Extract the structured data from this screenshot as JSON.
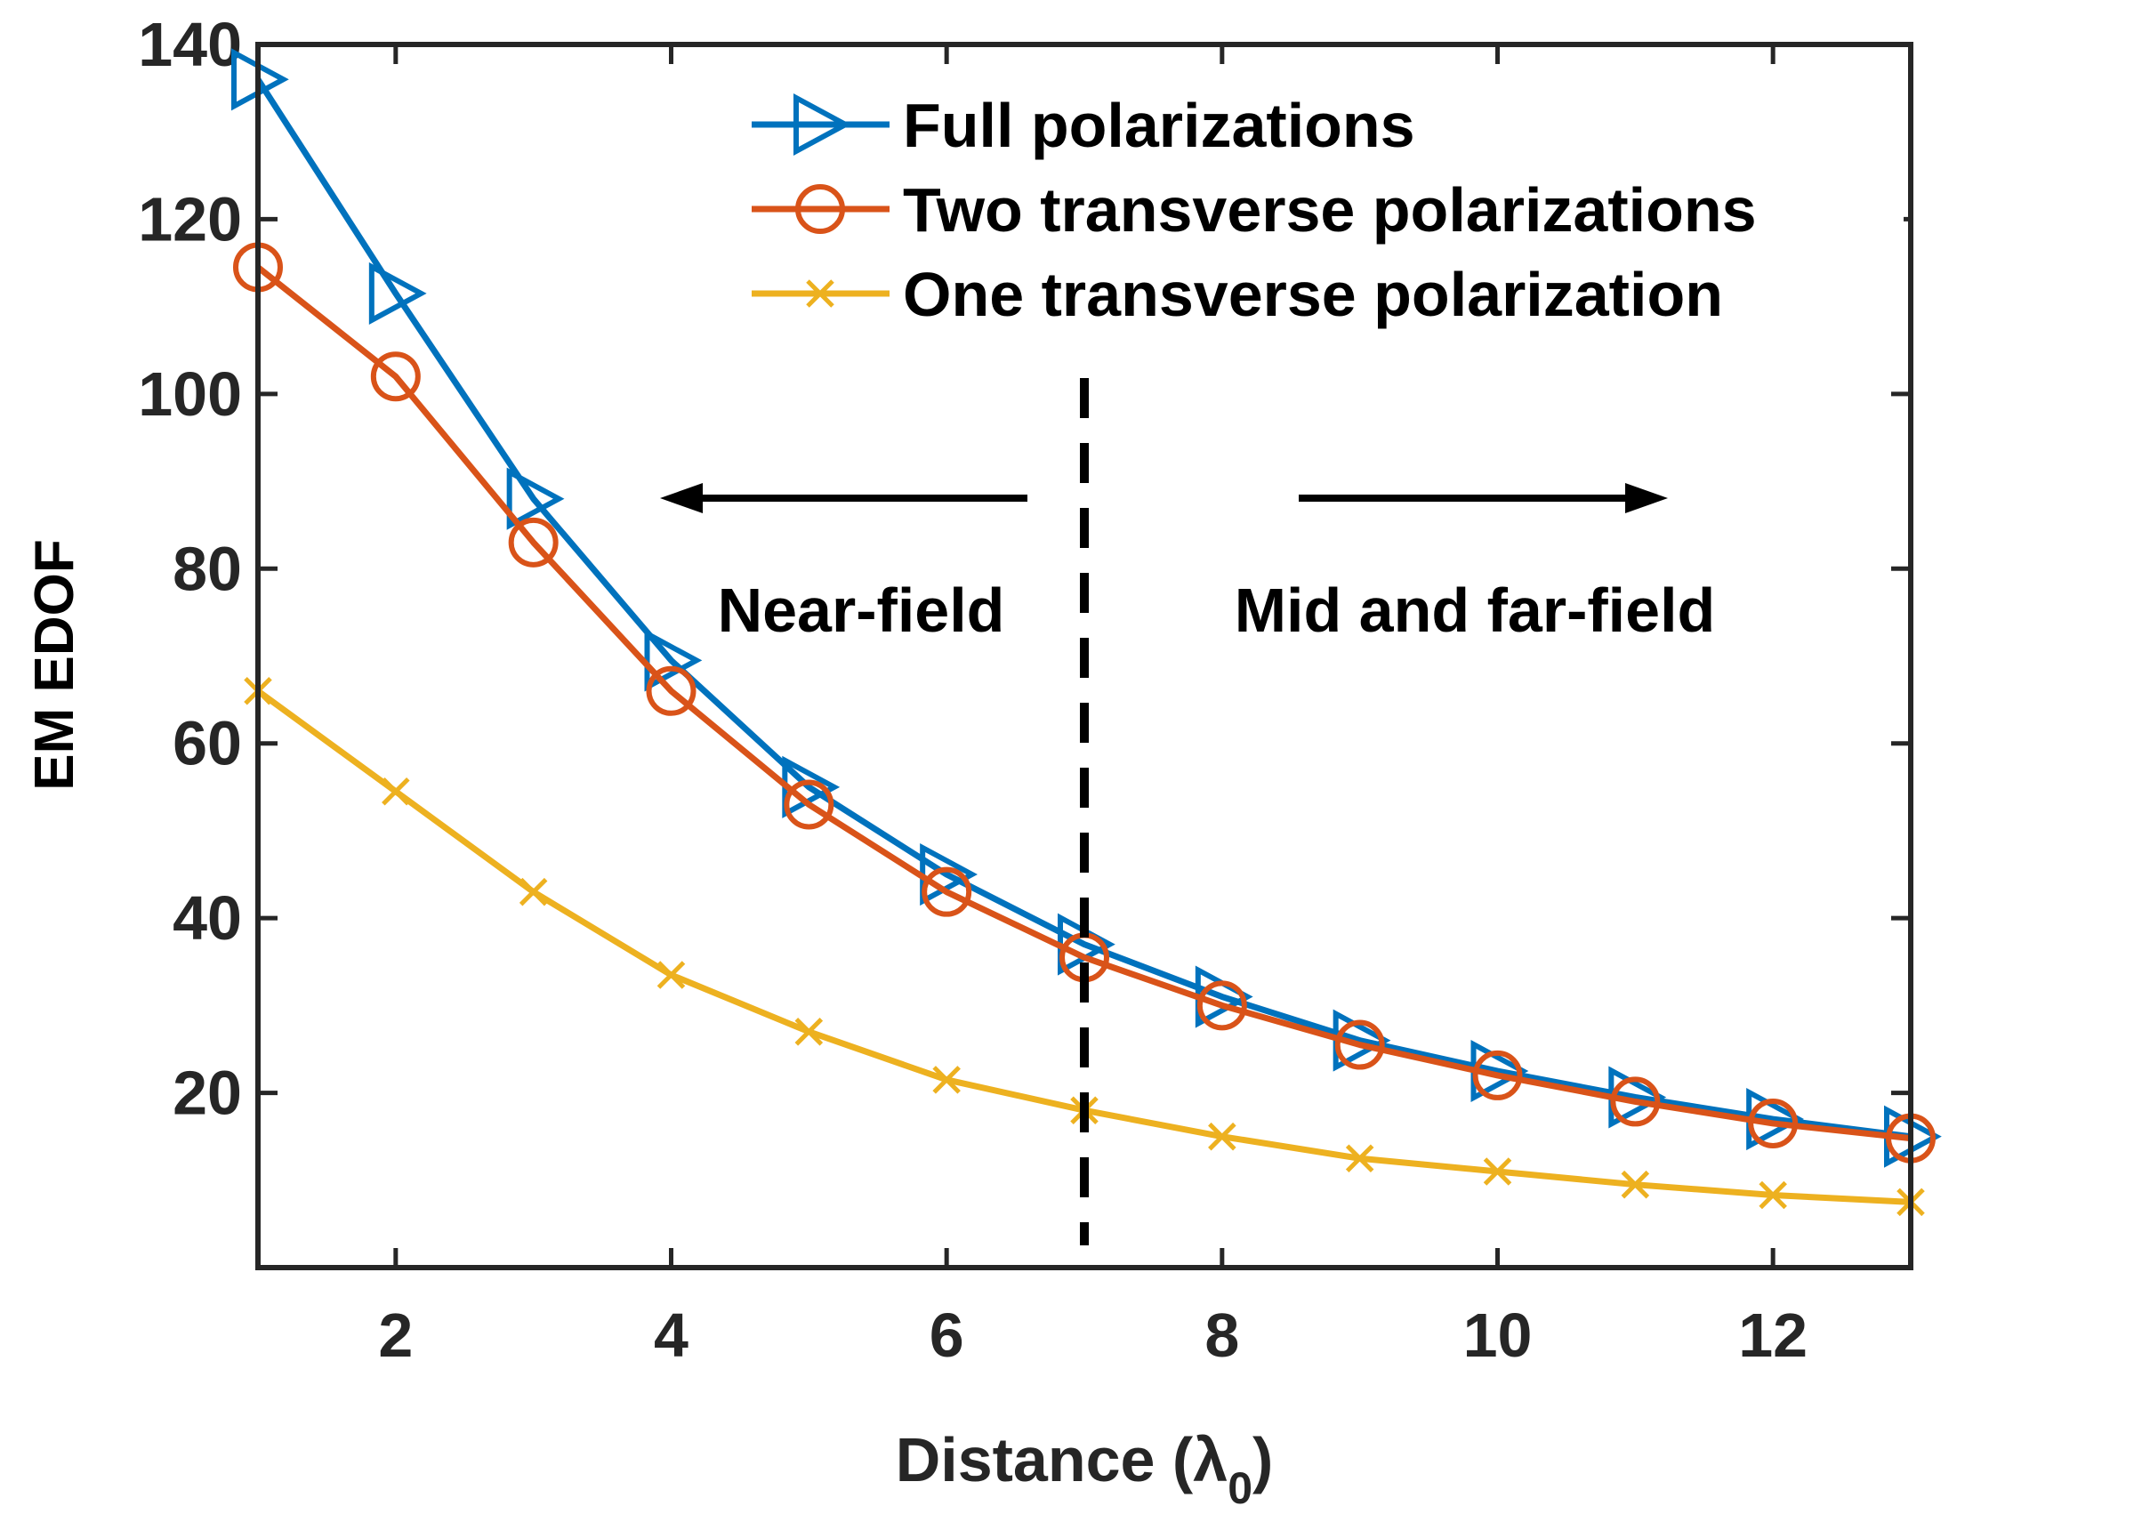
{
  "chart_data": {
    "type": "line",
    "title": "",
    "xlabel_main": "Distance (",
    "xlabel_symbol": "λ",
    "xlabel_sub": "0",
    "xlabel_close": ")",
    "ylabel": "EM EDOF",
    "xlim": [
      1,
      13
    ],
    "ylim": [
      0,
      140
    ],
    "xticks": [
      2,
      4,
      6,
      8,
      10,
      12
    ],
    "yticks": [
      20,
      40,
      60,
      80,
      100,
      120,
      140
    ],
    "x": [
      1,
      2,
      3,
      4,
      5,
      6,
      7,
      8,
      9,
      10,
      11,
      12,
      13
    ],
    "series": [
      {
        "name": "Full polarizations",
        "color": "#0072BD",
        "marker": "triangle-right",
        "values": [
          136,
          111.5,
          88,
          69.5,
          55,
          45,
          37,
          31,
          26,
          22.5,
          19.5,
          17,
          15
        ]
      },
      {
        "name": "Two transverse polarizations",
        "color": "#D95319",
        "marker": "circle",
        "values": [
          114.5,
          102,
          83,
          66,
          53,
          43,
          35.5,
          30,
          25.5,
          22,
          19,
          16.5,
          14.8
        ]
      },
      {
        "name": "One transverse polarization",
        "color": "#EDB120",
        "marker": "x",
        "values": [
          66,
          54.5,
          43,
          33.5,
          27,
          21.5,
          18,
          15,
          12.5,
          11,
          9.5,
          8.3,
          7.5
        ]
      }
    ],
    "divider_x": 7,
    "annotations": {
      "near_field": "Near-field",
      "far_field": "Mid and far-field"
    },
    "legend_position": "top-right"
  }
}
